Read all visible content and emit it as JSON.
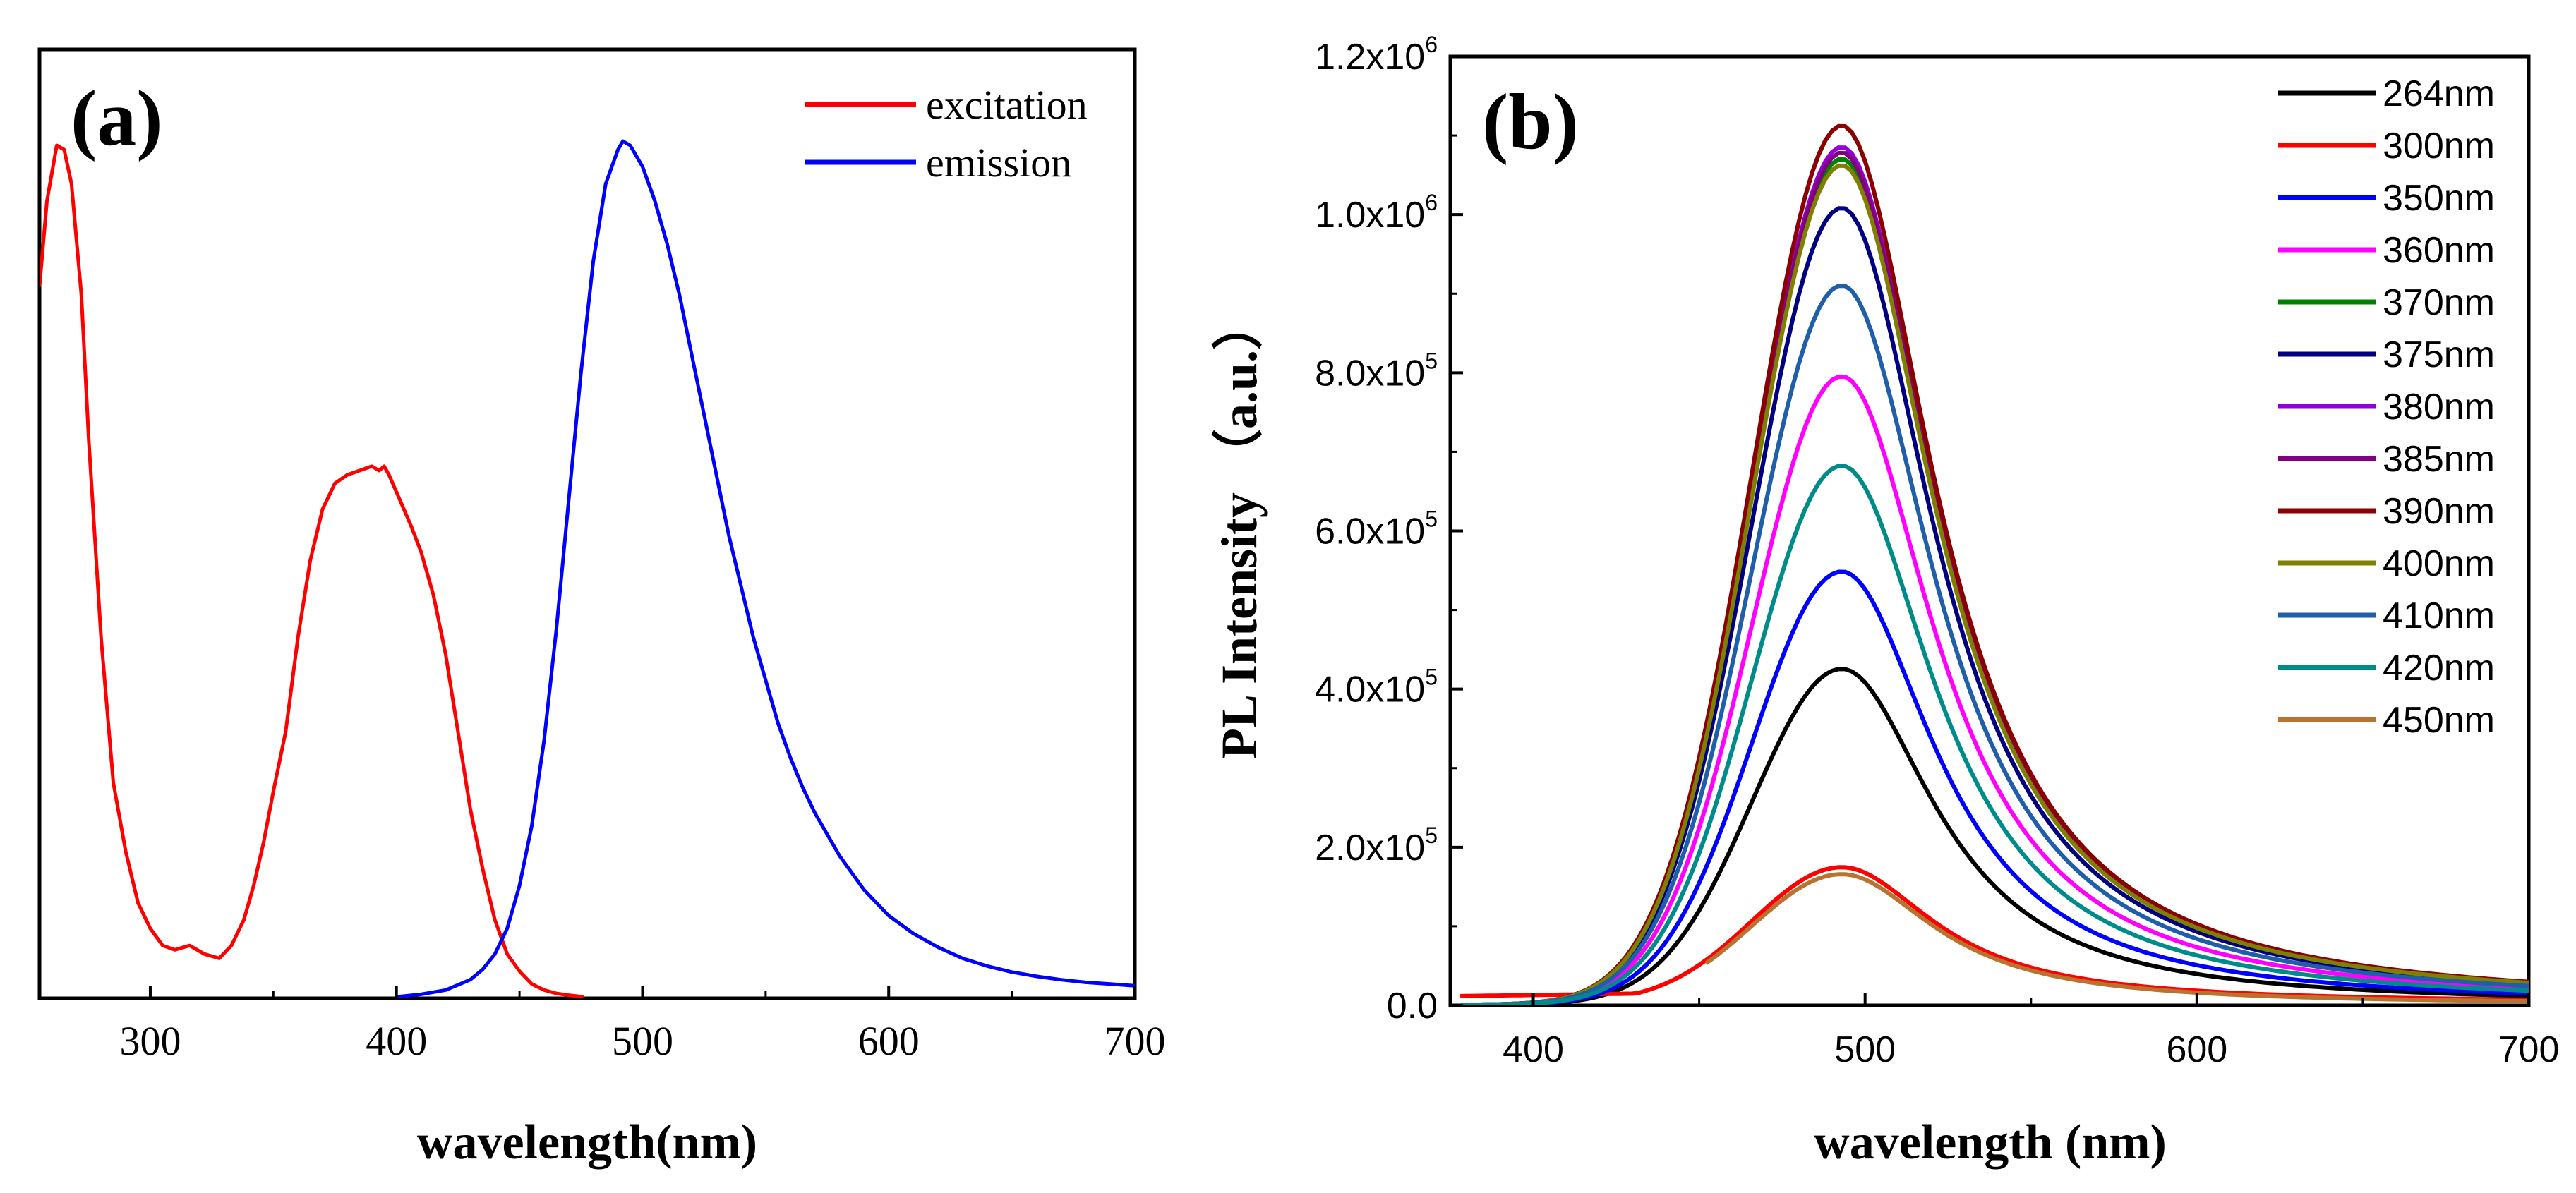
{
  "chart_data": [
    {
      "type": "line",
      "panel_label": "(a)",
      "xlabel": "wavelength(nm)",
      "ylabel": "",
      "xlim": [
        255,
        700
      ],
      "ylim": [
        0,
        1.0
      ],
      "y_ticks_shown": false,
      "x_ticks": [
        300,
        400,
        500,
        600,
        700
      ],
      "legend_position": "top-right",
      "series": [
        {
          "name": "excitation",
          "color": "#ff0000",
          "x": [
            255,
            258,
            262,
            265,
            268,
            272,
            275,
            280,
            285,
            290,
            295,
            300,
            305,
            310,
            316,
            322,
            328,
            333,
            338,
            342,
            346,
            350,
            355,
            360,
            365,
            370,
            375,
            380,
            385,
            390,
            393,
            395,
            397,
            400,
            403,
            406,
            410,
            415,
            420,
            425,
            430,
            435,
            440,
            445,
            450,
            455,
            460,
            465,
            470,
            476
          ],
          "y": [
            0.83,
            0.93,
            0.995,
            0.99,
            0.95,
            0.82,
            0.65,
            0.42,
            0.25,
            0.17,
            0.11,
            0.08,
            0.06,
            0.055,
            0.06,
            0.05,
            0.045,
            0.06,
            0.09,
            0.13,
            0.18,
            0.24,
            0.31,
            0.42,
            0.51,
            0.57,
            0.6,
            0.61,
            0.615,
            0.62,
            0.615,
            0.62,
            0.61,
            0.59,
            0.57,
            0.55,
            0.52,
            0.47,
            0.4,
            0.31,
            0.22,
            0.15,
            0.09,
            0.05,
            0.03,
            0.015,
            0.008,
            0.004,
            0.002,
            0.0
          ]
        },
        {
          "name": "emission",
          "color": "#0000ff",
          "x": [
            400,
            410,
            420,
            430,
            435,
            440,
            445,
            450,
            455,
            460,
            465,
            470,
            475,
            480,
            485,
            490,
            492,
            495,
            500,
            505,
            510,
            515,
            520,
            525,
            530,
            535,
            540,
            545,
            550,
            555,
            560,
            565,
            570,
            580,
            590,
            600,
            610,
            620,
            630,
            640,
            650,
            660,
            670,
            680,
            690,
            700
          ],
          "y": [
            0.0,
            0.003,
            0.008,
            0.02,
            0.032,
            0.05,
            0.08,
            0.13,
            0.2,
            0.3,
            0.43,
            0.58,
            0.73,
            0.86,
            0.95,
            0.99,
            1.0,
            0.995,
            0.97,
            0.93,
            0.88,
            0.82,
            0.75,
            0.68,
            0.61,
            0.54,
            0.48,
            0.42,
            0.37,
            0.32,
            0.28,
            0.245,
            0.215,
            0.165,
            0.125,
            0.095,
            0.074,
            0.058,
            0.045,
            0.036,
            0.029,
            0.024,
            0.02,
            0.017,
            0.015,
            0.013
          ]
        }
      ]
    },
    {
      "type": "line",
      "panel_label": "(b)",
      "xlabel": "wavelength (nm)",
      "ylabel": "PL Intensity  （a.u.）",
      "xlim": [
        375,
        700
      ],
      "ylim": [
        0,
        1200000
      ],
      "x_ticks": [
        400,
        500,
        600,
        700
      ],
      "y_ticks": [
        {
          "value": 0,
          "mantissa": "0.0",
          "exponent": ""
        },
        {
          "value": 200000,
          "mantissa": "2.0x10",
          "exponent": "5"
        },
        {
          "value": 400000,
          "mantissa": "4.0x10",
          "exponent": "5"
        },
        {
          "value": 600000,
          "mantissa": "6.0x10",
          "exponent": "5"
        },
        {
          "value": 800000,
          "mantissa": "8.0x10",
          "exponent": "5"
        },
        {
          "value": 1000000,
          "mantissa": "1.0x10",
          "exponent": "6"
        },
        {
          "value": 1200000,
          "mantissa": "1.2x10",
          "exponent": "6"
        }
      ],
      "legend_position": "top-right",
      "peak_wavelength": 493,
      "series": [
        {
          "name": "264nm",
          "color": "#000000",
          "peak": 425000
        },
        {
          "name": "300nm",
          "color": "#ff0000",
          "peak": 172000
        },
        {
          "name": "350nm",
          "color": "#0000ff",
          "peak": 548000
        },
        {
          "name": "360nm",
          "color": "#ff00ff",
          "peak": 795000
        },
        {
          "name": "370nm",
          "color": "#008000",
          "peak": 1070000
        },
        {
          "name": "375nm",
          "color": "#000080",
          "peak": 1008000
        },
        {
          "name": "380nm",
          "color": "#9400d3",
          "peak": 1085000
        },
        {
          "name": "385nm",
          "color": "#800080",
          "peak": 1078000
        },
        {
          "name": "390nm",
          "color": "#8b0000",
          "peak": 1112000
        },
        {
          "name": "400nm",
          "color": "#808000",
          "peak": 1062000
        },
        {
          "name": "410nm",
          "color": "#1f5ea8",
          "peak": 910000
        },
        {
          "name": "420nm",
          "color": "#008b8b",
          "peak": 682000
        },
        {
          "name": "450nm",
          "color": "#b8732e",
          "peak": 165000
        }
      ]
    }
  ]
}
